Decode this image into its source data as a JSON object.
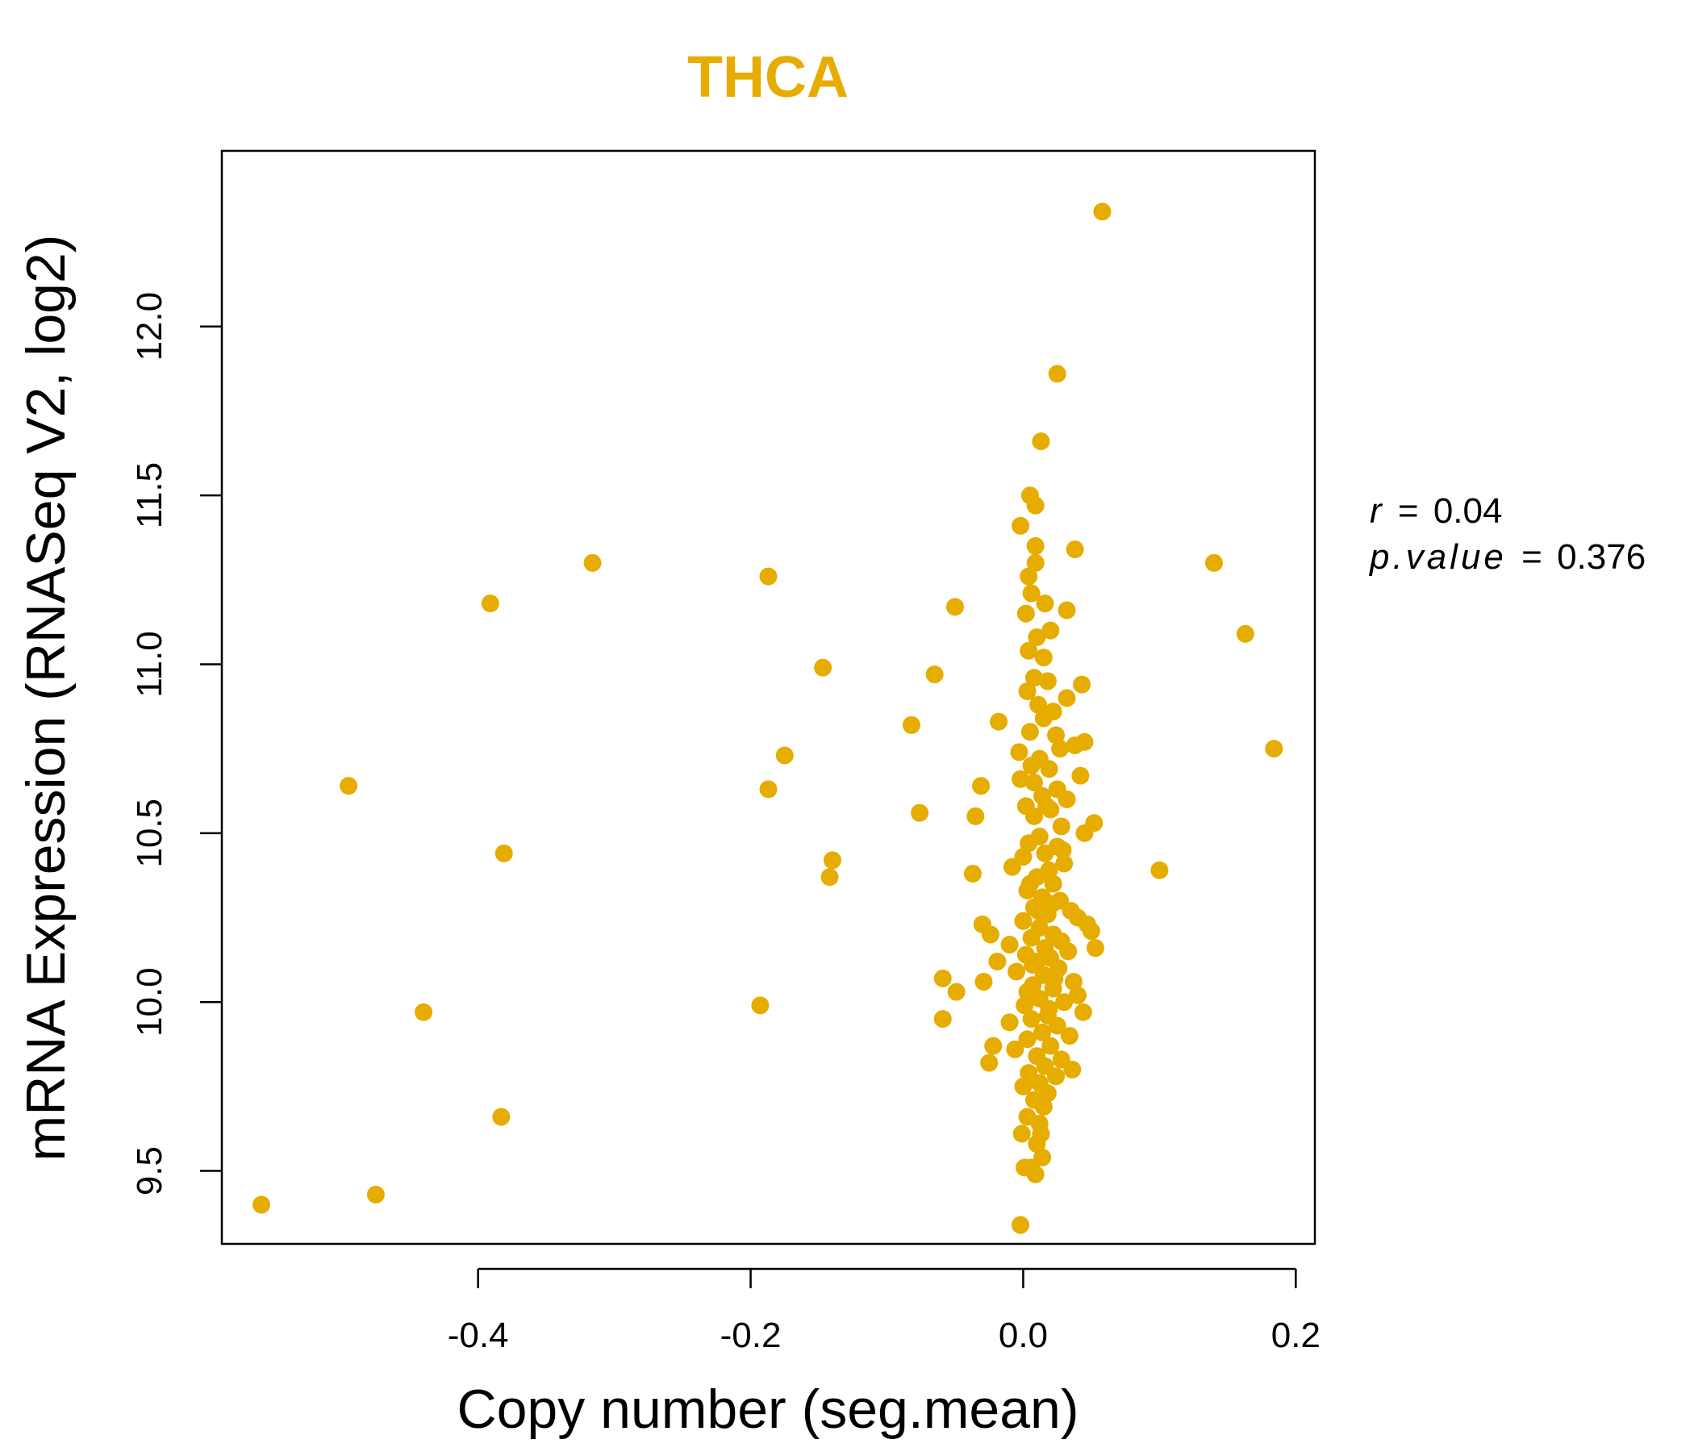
{
  "chart_data": {
    "type": "scatter",
    "title": "THCA",
    "xlabel": "Copy number (seg.mean)",
    "ylabel": "mRNA Expression (RNASeq V2, log2)",
    "xlim": [
      -0.588,
      0.214
    ],
    "ylim": [
      9.284,
      12.52
    ],
    "x_ticks": [
      -0.4,
      -0.2,
      0.0,
      0.2
    ],
    "x_tick_labels": [
      "-0.4",
      "-0.2",
      "0.0",
      "0.2"
    ],
    "y_ticks": [
      9.5,
      10.0,
      10.5,
      11.0,
      11.5,
      12.0
    ],
    "y_tick_labels": [
      "9.5",
      "10.0",
      "10.5",
      "11.0",
      "11.5",
      "12.0"
    ],
    "grid": false,
    "point_color": "#E6AC00",
    "title_color": "#E6AC00",
    "stats": {
      "r_symbol": "r",
      "r_value": "0.04",
      "p_symbol": "p.value",
      "p_value": "0.376"
    },
    "points": [
      [
        -0.559,
        9.4
      ],
      [
        -0.475,
        9.43
      ],
      [
        -0.495,
        10.64
      ],
      [
        -0.44,
        9.97
      ],
      [
        -0.391,
        11.18
      ],
      [
        -0.381,
        10.44
      ],
      [
        -0.383,
        9.66
      ],
      [
        -0.316,
        11.3
      ],
      [
        -0.187,
        11.26
      ],
      [
        -0.187,
        10.63
      ],
      [
        -0.175,
        10.73
      ],
      [
        -0.193,
        9.99
      ],
      [
        -0.147,
        10.99
      ],
      [
        -0.14,
        10.42
      ],
      [
        -0.142,
        10.37
      ],
      [
        -0.082,
        10.82
      ],
      [
        -0.076,
        10.56
      ],
      [
        -0.065,
        10.97
      ],
      [
        -0.05,
        11.17
      ],
      [
        -0.059,
        10.07
      ],
      [
        -0.059,
        9.95
      ],
      [
        -0.049,
        10.03
      ],
      [
        -0.037,
        10.38
      ],
      [
        -0.035,
        10.55
      ],
      [
        -0.031,
        10.64
      ],
      [
        -0.03,
        10.23
      ],
      [
        -0.029,
        10.06
      ],
      [
        -0.024,
        10.2
      ],
      [
        -0.022,
        9.87
      ],
      [
        -0.025,
        9.82
      ],
      [
        -0.018,
        10.83
      ],
      [
        -0.019,
        10.12
      ],
      [
        0.058,
        12.34
      ],
      [
        0.025,
        11.86
      ],
      [
        0.013,
        11.66
      ],
      [
        0.005,
        11.5
      ],
      [
        0.009,
        11.47
      ],
      [
        -0.002,
        11.41
      ],
      [
        0.009,
        11.35
      ],
      [
        0.038,
        11.34
      ],
      [
        0.009,
        11.3
      ],
      [
        0.004,
        11.26
      ],
      [
        0.006,
        11.21
      ],
      [
        0.016,
        11.18
      ],
      [
        0.032,
        11.16
      ],
      [
        0.002,
        11.15
      ],
      [
        0.02,
        11.1
      ],
      [
        0.01,
        11.08
      ],
      [
        0.004,
        11.04
      ],
      [
        0.015,
        11.02
      ],
      [
        0.043,
        10.94
      ],
      [
        0.008,
        10.96
      ],
      [
        0.018,
        10.95
      ],
      [
        0.003,
        10.92
      ],
      [
        0.032,
        10.9
      ],
      [
        0.011,
        10.88
      ],
      [
        0.022,
        10.86
      ],
      [
        0.015,
        10.84
      ],
      [
        0.005,
        10.8
      ],
      [
        0.024,
        10.79
      ],
      [
        0.045,
        10.77
      ],
      [
        0.038,
        10.76
      ],
      [
        0.027,
        10.75
      ],
      [
        -0.003,
        10.74
      ],
      [
        0.012,
        10.72
      ],
      [
        0.006,
        10.7
      ],
      [
        0.019,
        10.69
      ],
      [
        0.042,
        10.67
      ],
      [
        -0.002,
        10.66
      ],
      [
        0.025,
        10.63
      ],
      [
        0.014,
        10.61
      ],
      [
        0.032,
        10.6
      ],
      [
        0.002,
        10.58
      ],
      [
        0.02,
        10.57
      ],
      [
        0.008,
        10.55
      ],
      [
        0.052,
        10.53
      ],
      [
        0.028,
        10.52
      ],
      [
        0.045,
        10.5
      ],
      [
        0.012,
        10.49
      ],
      [
        0.004,
        10.47
      ],
      [
        0.025,
        10.46
      ],
      [
        0.016,
        10.44
      ],
      [
        0.0,
        10.43
      ],
      [
        0.03,
        10.41
      ],
      [
        -0.008,
        10.4
      ],
      [
        0.019,
        10.39
      ],
      [
        0.01,
        10.37
      ],
      [
        0.022,
        10.35
      ],
      [
        0.003,
        10.33
      ],
      [
        0.014,
        10.31
      ],
      [
        0.027,
        10.3
      ],
      [
        0.008,
        10.28
      ],
      [
        0.035,
        10.27
      ],
      [
        0.018,
        10.26
      ],
      [
        0.04,
        10.25
      ],
      [
        0.047,
        10.23
      ],
      [
        0.0,
        10.24
      ],
      [
        0.012,
        10.22
      ],
      [
        0.05,
        10.21
      ],
      [
        0.022,
        10.2
      ],
      [
        0.006,
        10.19
      ],
      [
        0.028,
        10.18
      ],
      [
        -0.01,
        10.17
      ],
      [
        0.016,
        10.16
      ],
      [
        0.053,
        10.16
      ],
      [
        0.033,
        10.15
      ],
      [
        0.002,
        10.14
      ],
      [
        0.02,
        10.13
      ],
      [
        0.01,
        10.12
      ],
      [
        0.026,
        10.1
      ],
      [
        -0.005,
        10.09
      ],
      [
        0.015,
        10.08
      ],
      [
        0.037,
        10.06
      ],
      [
        0.007,
        10.05
      ],
      [
        0.022,
        10.04
      ],
      [
        0.04,
        10.02
      ],
      [
        0.012,
        10.01
      ],
      [
        0.03,
        10.0
      ],
      [
        0.001,
        9.99
      ],
      [
        0.044,
        9.97
      ],
      [
        0.018,
        9.96
      ],
      [
        0.006,
        9.95
      ],
      [
        -0.01,
        9.94
      ],
      [
        0.025,
        9.93
      ],
      [
        0.014,
        9.91
      ],
      [
        0.034,
        9.9
      ],
      [
        0.003,
        9.89
      ],
      [
        0.02,
        9.87
      ],
      [
        -0.006,
        9.86
      ],
      [
        0.01,
        9.84
      ],
      [
        0.028,
        9.83
      ],
      [
        0.016,
        9.81
      ],
      [
        0.036,
        9.8
      ],
      [
        0.004,
        9.79
      ],
      [
        0.024,
        9.78
      ],
      [
        0.012,
        9.76
      ],
      [
        0.0,
        9.75
      ],
      [
        0.018,
        9.73
      ],
      [
        0.008,
        9.71
      ],
      [
        0.015,
        9.69
      ],
      [
        0.003,
        9.66
      ],
      [
        0.012,
        9.64
      ],
      [
        -0.001,
        9.61
      ],
      [
        0.013,
        9.61
      ],
      [
        0.01,
        9.58
      ],
      [
        0.014,
        9.54
      ],
      [
        0.001,
        9.51
      ],
      [
        0.006,
        9.51
      ],
      [
        0.009,
        9.49
      ],
      [
        -0.002,
        9.34
      ],
      [
        0.1,
        10.39
      ],
      [
        0.14,
        11.3
      ],
      [
        0.163,
        11.09
      ],
      [
        0.184,
        10.75
      ],
      [
        0.008,
        10.65
      ],
      [
        0.017,
        10.58
      ],
      [
        0.005,
        10.35
      ],
      [
        0.021,
        10.29
      ],
      [
        0.011,
        10.27
      ],
      [
        0.003,
        10.03
      ],
      [
        0.019,
        9.98
      ],
      [
        0.029,
        10.45
      ],
      [
        0.007,
        10.11
      ],
      [
        0.023,
        10.07
      ]
    ]
  }
}
